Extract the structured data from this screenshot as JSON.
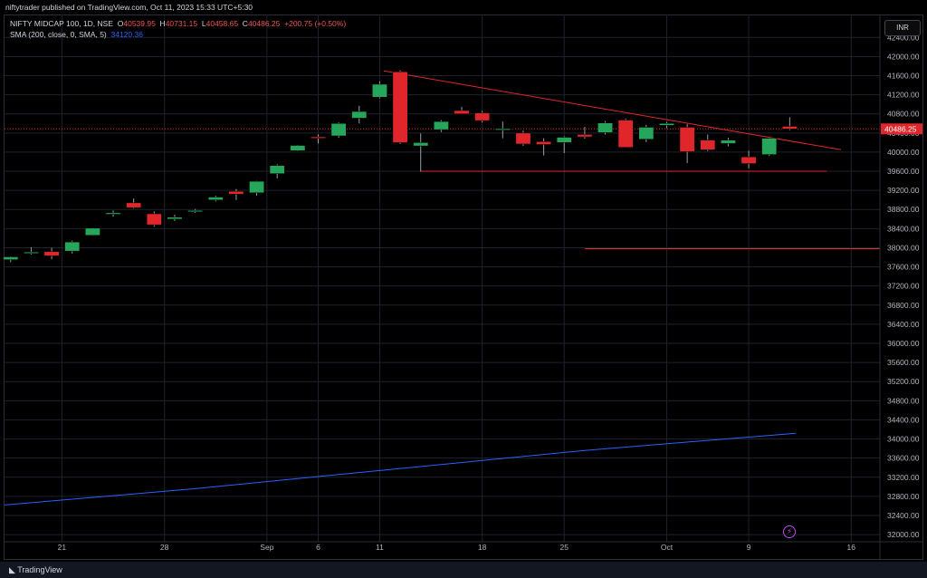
{
  "header": {
    "published": "niftytrader published on TradingView.com, Oct 11, 2023 15:33 UTC+5:30"
  },
  "legend": {
    "symbol": "NIFTY MIDCAP 100, 1D, NSE",
    "open_label": "O",
    "open": "40539.95",
    "high_label": "H",
    "high": "40731.15",
    "low_label": "L",
    "low": "40458.65",
    "close_label": "C",
    "close": "40486.25",
    "change": "+200.75 (+0.50%)",
    "sma_label": "SMA (200, close, 0, SMA, 5)",
    "sma_value": "34120.36"
  },
  "currency_button": "INR",
  "footer": {
    "brand": "TradingView"
  },
  "colors": {
    "up": "#26a65b",
    "down": "#e0262b",
    "sma": "#2962ff",
    "trend": "#e0262b",
    "grid": "#1e222d"
  },
  "chart_data": {
    "type": "candlestick",
    "price_axis": {
      "ticks": [
        32000,
        32400,
        32800,
        33200,
        33600,
        34000,
        34400,
        34800,
        35200,
        35600,
        36000,
        36400,
        36800,
        37200,
        37600,
        38000,
        38400,
        38800,
        39200,
        39600,
        40000,
        40400,
        40800,
        41200,
        41600,
        42000,
        42400
      ],
      "tick_labels": [
        "32000.00",
        "32400.00",
        "32800.00",
        "33200.00",
        "33600.00",
        "34000.00",
        "34400.00",
        "34800.00",
        "35200.00",
        "35600.00",
        "36000.00",
        "36400.00",
        "36800.00",
        "37200.00",
        "37600.00",
        "38000.00",
        "38400.00",
        "38800.00",
        "39200.00",
        "39600.00",
        "40000.00",
        "40400.00",
        "40800.00",
        "41200.00",
        "41600.00",
        "42000.00",
        "42400.00"
      ],
      "current_price": "40486.25",
      "ylim": [
        31850,
        42500
      ]
    },
    "time_axis": {
      "labels": [
        {
          "text": "21",
          "index": 2.5
        },
        {
          "text": "28",
          "index": 7.5
        },
        {
          "text": "Sep",
          "index": 12.5
        },
        {
          "text": "6",
          "index": 15
        },
        {
          "text": "11",
          "index": 18
        },
        {
          "text": "18",
          "index": 23
        },
        {
          "text": "25",
          "index": 27
        },
        {
          "text": "Oct",
          "index": 32
        },
        {
          "text": "9",
          "index": 36
        },
        {
          "text": "16",
          "index": 41
        }
      ],
      "xlim": [
        -0.3,
        42.4
      ]
    },
    "candles": [
      {
        "i": 0,
        "o": 37750,
        "h": 37820,
        "l": 37700,
        "c": 37810
      },
      {
        "i": 1,
        "o": 37900,
        "h": 38010,
        "l": 37860,
        "c": 37910
      },
      {
        "i": 2,
        "o": 37920,
        "h": 38000,
        "l": 37760,
        "c": 37830
      },
      {
        "i": 3,
        "o": 37930,
        "h": 38150,
        "l": 37880,
        "c": 38120
      },
      {
        "i": 4,
        "o": 38260,
        "h": 38420,
        "l": 38250,
        "c": 38410
      },
      {
        "i": 5,
        "o": 38700,
        "h": 38780,
        "l": 38650,
        "c": 38730
      },
      {
        "i": 6,
        "o": 38940,
        "h": 39030,
        "l": 38820,
        "c": 38840
      },
      {
        "i": 7,
        "o": 38710,
        "h": 38760,
        "l": 38440,
        "c": 38480
      },
      {
        "i": 8,
        "o": 38600,
        "h": 38690,
        "l": 38560,
        "c": 38640
      },
      {
        "i": 9,
        "o": 38770,
        "h": 38810,
        "l": 38730,
        "c": 38780
      },
      {
        "i": 10,
        "o": 39000,
        "h": 39090,
        "l": 38970,
        "c": 39060
      },
      {
        "i": 11,
        "o": 39180,
        "h": 39230,
        "l": 39000,
        "c": 39120
      },
      {
        "i": 12,
        "o": 39150,
        "h": 39400,
        "l": 39090,
        "c": 39390
      },
      {
        "i": 13,
        "o": 39550,
        "h": 39750,
        "l": 39450,
        "c": 39720
      },
      {
        "i": 14,
        "o": 40030,
        "h": 40150,
        "l": 40020,
        "c": 40140
      },
      {
        "i": 15,
        "o": 40320,
        "h": 40370,
        "l": 40180,
        "c": 40290
      },
      {
        "i": 16,
        "o": 40340,
        "h": 40620,
        "l": 40300,
        "c": 40600
      },
      {
        "i": 17,
        "o": 40710,
        "h": 40970,
        "l": 40600,
        "c": 40850
      },
      {
        "i": 18,
        "o": 41150,
        "h": 41480,
        "l": 41120,
        "c": 41420
      },
      {
        "i": 19,
        "o": 41680,
        "h": 41710,
        "l": 40170,
        "c": 40200
      },
      {
        "i": 20,
        "o": 40130,
        "h": 40390,
        "l": 39590,
        "c": 40200
      },
      {
        "i": 21,
        "o": 40470,
        "h": 40670,
        "l": 40420,
        "c": 40640
      },
      {
        "i": 22,
        "o": 40870,
        "h": 40950,
        "l": 40800,
        "c": 40800
      },
      {
        "i": 23,
        "o": 40820,
        "h": 40860,
        "l": 40620,
        "c": 40660
      },
      {
        "i": 24,
        "o": 40480,
        "h": 40640,
        "l": 40290,
        "c": 40490
      },
      {
        "i": 25,
        "o": 40400,
        "h": 40450,
        "l": 40130,
        "c": 40170
      },
      {
        "i": 26,
        "o": 40220,
        "h": 40290,
        "l": 39930,
        "c": 40160
      },
      {
        "i": 27,
        "o": 40200,
        "h": 40330,
        "l": 39980,
        "c": 40310
      },
      {
        "i": 28,
        "o": 40370,
        "h": 40530,
        "l": 40280,
        "c": 40320
      },
      {
        "i": 29,
        "o": 40410,
        "h": 40650,
        "l": 40370,
        "c": 40610
      },
      {
        "i": 30,
        "o": 40670,
        "h": 40700,
        "l": 40100,
        "c": 40100
      },
      {
        "i": 31,
        "o": 40270,
        "h": 40570,
        "l": 40210,
        "c": 40520
      },
      {
        "i": 32,
        "o": 40560,
        "h": 40630,
        "l": 40500,
        "c": 40600
      },
      {
        "i": 33,
        "o": 40520,
        "h": 40590,
        "l": 39770,
        "c": 40010
      },
      {
        "i": 34,
        "o": 40250,
        "h": 40370,
        "l": 40020,
        "c": 40050
      },
      {
        "i": 35,
        "o": 40180,
        "h": 40300,
        "l": 40120,
        "c": 40250
      },
      {
        "i": 36,
        "o": 39900,
        "h": 40030,
        "l": 39660,
        "c": 39760
      },
      {
        "i": 37,
        "o": 39950,
        "h": 40300,
        "l": 39920,
        "c": 40290
      },
      {
        "i": 38,
        "o": 40540,
        "h": 40731,
        "l": 40459,
        "c": 40486
      }
    ],
    "sma_200": [
      {
        "i": -0.3,
        "v": 32620
      },
      {
        "i": 9,
        "v": 32960
      },
      {
        "i": 18,
        "v": 33340
      },
      {
        "i": 28,
        "v": 33760
      },
      {
        "i": 38.3,
        "v": 34120
      }
    ],
    "trendlines": [
      {
        "kind": "descending",
        "points": [
          {
            "i": 18.2,
            "v": 41700
          },
          {
            "i": 40.5,
            "v": 40050
          }
        ]
      },
      {
        "kind": "support",
        "points": [
          {
            "i": 20.0,
            "v": 39600
          },
          {
            "i": 39.8,
            "v": 39600
          }
        ]
      },
      {
        "kind": "horizontal",
        "points": [
          {
            "i": 28.0,
            "v": 37980
          },
          {
            "i": 42.4,
            "v": 37980
          }
        ]
      }
    ],
    "grid": true,
    "legend_position": "top-left"
  }
}
